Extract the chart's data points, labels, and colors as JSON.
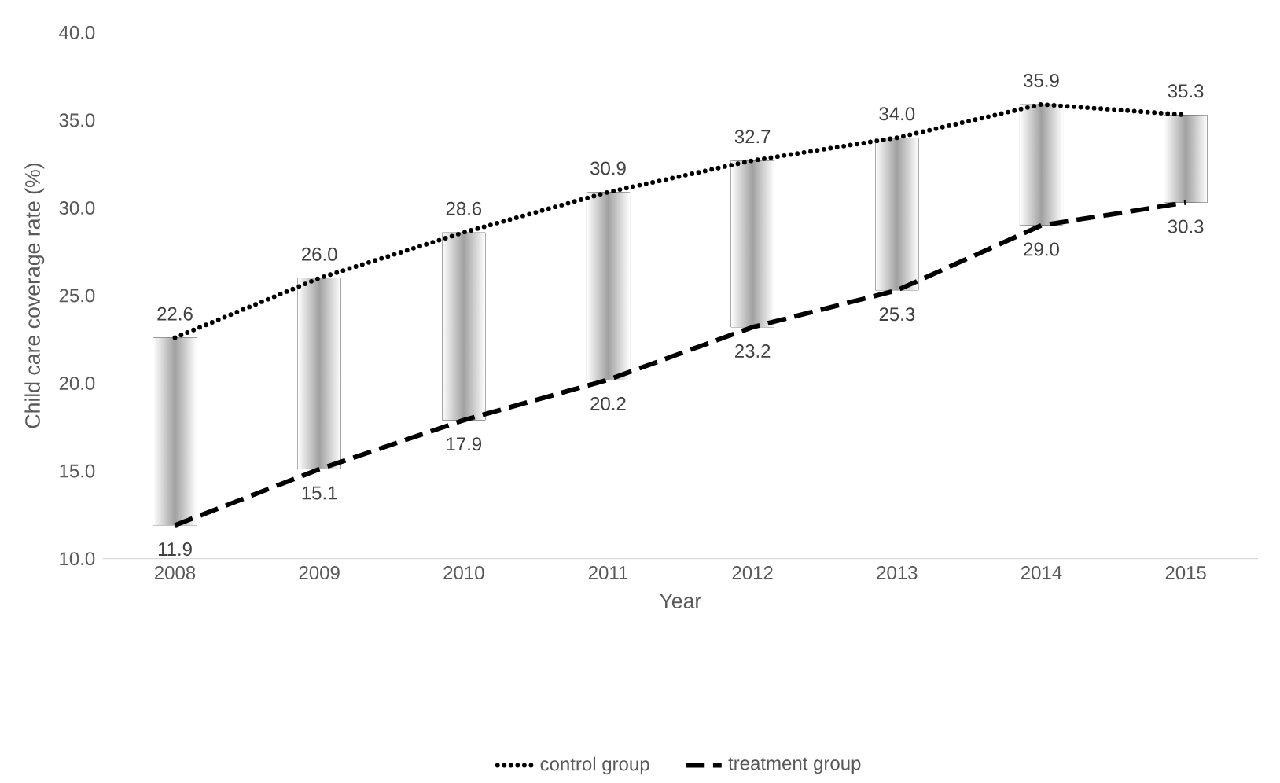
{
  "chart_data": {
    "type": "line",
    "xlabel": "Year",
    "ylabel": "Child care coverage rate (%)",
    "categories": [
      "2008",
      "2009",
      "2010",
      "2011",
      "2012",
      "2013",
      "2014",
      "2015"
    ],
    "ylim": [
      10,
      40
    ],
    "yticks": [
      {
        "value": 10,
        "label": "10.0"
      },
      {
        "value": 15,
        "label": "15.0"
      },
      {
        "value": 20,
        "label": "20.0"
      },
      {
        "value": 25,
        "label": "25.0"
      },
      {
        "value": 30,
        "label": "30.0"
      },
      {
        "value": 35,
        "label": "35.0"
      },
      {
        "value": 40,
        "label": "40.0"
      }
    ],
    "grid": false,
    "legend": "bottom",
    "marker": "none",
    "series": [
      {
        "type": "bar",
        "color": "#a0a0a0",
        "base": [
          11.9,
          15.1,
          17.9,
          20.2,
          23.2,
          25.3,
          29.0,
          30.3
        ],
        "values": [
          10.7,
          10.9,
          10.7,
          10.7,
          9.5,
          8.7,
          6.9,
          5.0
        ]
      },
      {
        "name": "control group",
        "color": "#000000",
        "line_style": "dotted",
        "values": [
          22.6,
          26.0,
          28.6,
          30.9,
          32.7,
          34.0,
          35.9,
          35.3
        ],
        "value_labels": [
          "22.6",
          "26.0",
          "28.6",
          "30.9",
          "32.7",
          "34.0",
          "35.9",
          "35.3"
        ]
      },
      {
        "name": "treatment group",
        "color": "#000000",
        "line_style": "dashed",
        "values": [
          11.9,
          15.1,
          17.9,
          20.2,
          23.2,
          25.3,
          29.0,
          30.3
        ],
        "value_labels": [
          "11.9",
          "15.1",
          "17.9",
          "20.2",
          "23.2",
          "25.3",
          "29.0",
          "30.3"
        ]
      }
    ]
  }
}
